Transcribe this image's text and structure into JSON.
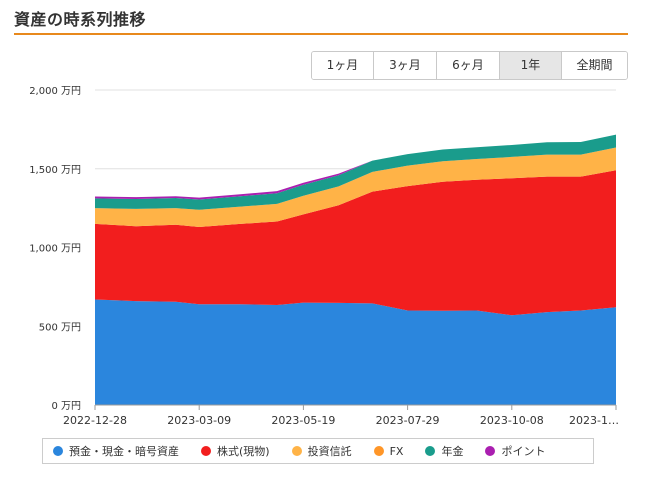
{
  "page": {
    "title": "資産の時系列推移"
  },
  "range_tabs": [
    {
      "label": "1ヶ月",
      "active": false
    },
    {
      "label": "3ヶ月",
      "active": false
    },
    {
      "label": "6ヶ月",
      "active": false
    },
    {
      "label": "1年",
      "active": true
    },
    {
      "label": "全期間",
      "active": false
    }
  ],
  "chart_data": {
    "type": "area",
    "stacked": true,
    "grid": true,
    "legend_position": "bottom",
    "y_ticks": [
      "0 万円",
      "500 万円",
      "1,000 万円",
      "1,500 万円",
      "2,000 万円"
    ],
    "ylim": [
      0,
      2000
    ],
    "x_ticks": [
      "2022-12-28",
      "2023-03-09",
      "2023-05-19",
      "2023-07-29",
      "2023-10-08",
      "2023-1…"
    ],
    "x": [
      "2022-12-28",
      "2023-01-25",
      "2023-02-21",
      "2023-03-09",
      "2023-04-06",
      "2023-05-01",
      "2023-05-19",
      "2023-06-12",
      "2023-07-05",
      "2023-07-29",
      "2023-08-22",
      "2023-09-14",
      "2023-10-08",
      "2023-11-01",
      "2023-11-24",
      "2023-12-18"
    ],
    "series": [
      {
        "name": "預金・現金・暗号資産",
        "color": "#2b86dd",
        "values": [
          670,
          660,
          655,
          640,
          640,
          635,
          650,
          648,
          645,
          600,
          598,
          600,
          570,
          590,
          600,
          620
        ]
      },
      {
        "name": "株式(現物)",
        "color": "#f21e1e",
        "values": [
          480,
          475,
          490,
          490,
          510,
          530,
          560,
          620,
          710,
          790,
          820,
          830,
          870,
          860,
          850,
          870
        ]
      },
      {
        "name": "投資信託",
        "color": "#ffb347",
        "values": [
          100,
          110,
          105,
          110,
          110,
          112,
          118,
          120,
          125,
          130,
          130,
          132,
          135,
          140,
          140,
          145
        ]
      },
      {
        "name": "FX",
        "color": "#ff9628",
        "values": [
          0,
          0,
          0,
          0,
          0,
          0,
          0,
          0,
          0,
          0,
          0,
          0,
          0,
          0,
          0,
          0
        ]
      },
      {
        "name": "年金",
        "color": "#1a9c8c",
        "values": [
          62,
          63,
          64,
          65,
          66,
          68,
          70,
          71,
          72,
          73,
          74,
          75,
          76,
          78,
          80,
          82
        ]
      },
      {
        "name": "ポイント",
        "color": "#aa1fb0",
        "values": [
          12,
          12,
          12,
          12,
          12,
          13,
          13,
          10,
          0,
          0,
          0,
          0,
          0,
          0,
          0,
          0
        ]
      }
    ]
  }
}
